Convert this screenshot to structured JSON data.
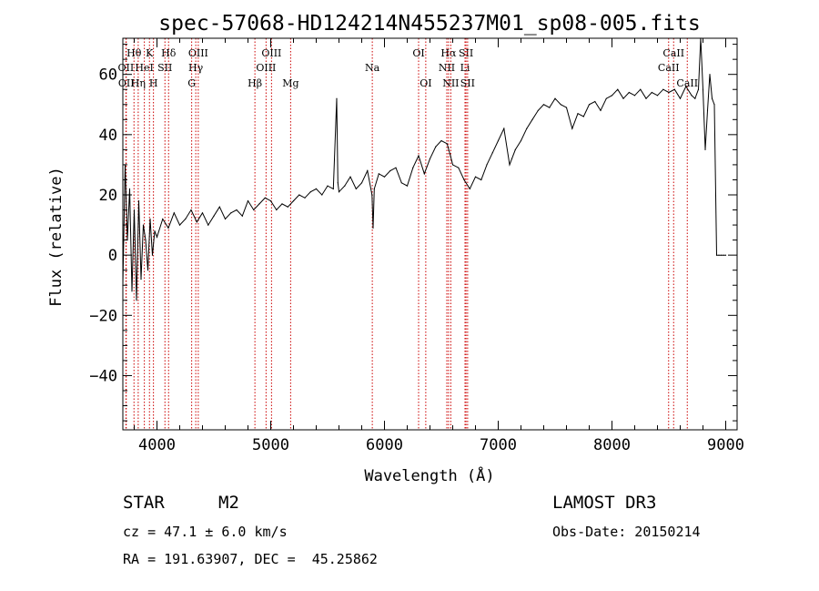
{
  "chart_data": {
    "type": "line",
    "title": "spec-57068-HD124214N455237M01_sp08-005.fits",
    "xlabel": "Wavelength (Å)",
    "ylabel": "Flux (relative)",
    "xlim": [
      3700,
      9100
    ],
    "ylim": [
      -58,
      72
    ],
    "xticks": [
      4000,
      5000,
      6000,
      7000,
      8000,
      9000
    ],
    "yticks": [
      -40,
      -20,
      0,
      20,
      40,
      60
    ],
    "series": [
      {
        "name": "flux",
        "x": [
          3700,
          3720,
          3740,
          3760,
          3780,
          3800,
          3820,
          3840,
          3860,
          3880,
          3900,
          3920,
          3940,
          3960,
          3980,
          4000,
          4050,
          4100,
          4150,
          4200,
          4250,
          4300,
          4350,
          4400,
          4450,
          4500,
          4550,
          4600,
          4650,
          4700,
          4750,
          4800,
          4850,
          4900,
          4950,
          5000,
          5050,
          5100,
          5150,
          5200,
          5250,
          5300,
          5350,
          5400,
          5450,
          5500,
          5550,
          5580,
          5590,
          5600,
          5650,
          5700,
          5750,
          5800,
          5850,
          5890,
          5900,
          5910,
          5950,
          6000,
          6050,
          6100,
          6150,
          6200,
          6250,
          6300,
          6350,
          6400,
          6450,
          6500,
          6550,
          6580,
          6600,
          6650,
          6700,
          6750,
          6800,
          6850,
          6900,
          6950,
          7000,
          7050,
          7100,
          7120,
          7150,
          7200,
          7250,
          7300,
          7350,
          7400,
          7450,
          7500,
          7550,
          7600,
          7650,
          7700,
          7750,
          7800,
          7850,
          7900,
          7950,
          8000,
          8050,
          8100,
          8150,
          8200,
          8250,
          8300,
          8350,
          8400,
          8450,
          8500,
          8550,
          8600,
          8650,
          8700,
          8730,
          8760,
          8780,
          8800,
          8820,
          8840,
          8860,
          8880,
          8900,
          8920,
          8940,
          8960,
          8980,
          9000
        ],
        "y": [
          -10,
          30,
          5,
          22,
          -12,
          15,
          -15,
          18,
          -8,
          10,
          5,
          -5,
          12,
          0,
          8,
          6,
          12,
          9,
          14,
          10,
          12,
          15,
          11,
          14,
          10,
          13,
          16,
          12,
          14,
          15,
          13,
          18,
          15,
          17,
          19,
          18,
          15,
          17,
          16,
          18,
          20,
          19,
          21,
          22,
          20,
          23,
          22,
          52,
          24,
          21,
          23,
          26,
          22,
          24,
          28,
          20,
          9,
          22,
          27,
          26,
          28,
          29,
          24,
          23,
          29,
          33,
          27,
          32,
          36,
          38,
          37,
          33,
          30,
          29,
          25,
          22,
          26,
          25,
          30,
          34,
          38,
          42,
          30,
          32,
          35,
          38,
          42,
          45,
          48,
          50,
          49,
          52,
          50,
          49,
          42,
          47,
          46,
          50,
          51,
          48,
          52,
          53,
          55,
          52,
          54,
          53,
          55,
          52,
          54,
          53,
          55,
          54,
          55,
          52,
          56,
          53,
          52,
          55,
          72,
          55,
          35,
          48,
          60,
          52,
          50,
          0,
          0,
          0,
          0,
          0
        ]
      }
    ],
    "lines": [
      {
        "name": "Hθ",
        "wavelength": 3798,
        "row": 1
      },
      {
        "name": "OII",
        "wavelength": 3727,
        "row": 2
      },
      {
        "name": "OII",
        "wavelength": 3730,
        "row": 3
      },
      {
        "name": "HeI",
        "wavelength": 3889,
        "row": 2
      },
      {
        "name": "Hη",
        "wavelength": 3835,
        "row": 3
      },
      {
        "name": "K",
        "wavelength": 3934,
        "row": 1
      },
      {
        "name": "SII",
        "wavelength": 4070,
        "row": 2
      },
      {
        "name": "H",
        "wavelength": 3969,
        "row": 3
      },
      {
        "name": "Hδ",
        "wavelength": 4102,
        "row": 1
      },
      {
        "name": "OIII",
        "wavelength": 4363,
        "row": 1
      },
      {
        "name": "Hγ",
        "wavelength": 4341,
        "row": 2
      },
      {
        "name": "G",
        "wavelength": 4305,
        "row": 3
      },
      {
        "name": "Hβ",
        "wavelength": 4861,
        "row": 3
      },
      {
        "name": "OIII",
        "wavelength": 5007,
        "row": 1
      },
      {
        "name": "OIII",
        "wavelength": 4959,
        "row": 2
      },
      {
        "name": "Mg",
        "wavelength": 5175,
        "row": 3
      },
      {
        "name": "Na",
        "wavelength": 5893,
        "row": 2
      },
      {
        "name": "OI",
        "wavelength": 6300,
        "row": 1
      },
      {
        "name": "OI",
        "wavelength": 6363,
        "row": 3
      },
      {
        "name": "Hα",
        "wavelength": 6563,
        "row": 1
      },
      {
        "name": "NII",
        "wavelength": 6548,
        "row": 2
      },
      {
        "name": "NII",
        "wavelength": 6583,
        "row": 3
      },
      {
        "name": "SII",
        "wavelength": 6717,
        "row": 1
      },
      {
        "name": "Li",
        "wavelength": 6708,
        "row": 2
      },
      {
        "name": "SII",
        "wavelength": 6731,
        "row": 3
      },
      {
        "name": "CaII",
        "wavelength": 8542,
        "row": 1
      },
      {
        "name": "CaII",
        "wavelength": 8498,
        "row": 2
      },
      {
        "name": "CaII",
        "wavelength": 8662,
        "row": 3
      }
    ]
  },
  "footer": {
    "object_type": "STAR",
    "subclass": "M2",
    "survey": "LAMOST DR3",
    "redshift": "cz = 47.1 ± 6.0 km/s",
    "obs_date": "Obs-Date: 20150214",
    "coords": "RA = 191.63907, DEC =  45.25862"
  },
  "colors": {
    "line_marker": "#cc0000",
    "spectrum": "#000000"
  }
}
